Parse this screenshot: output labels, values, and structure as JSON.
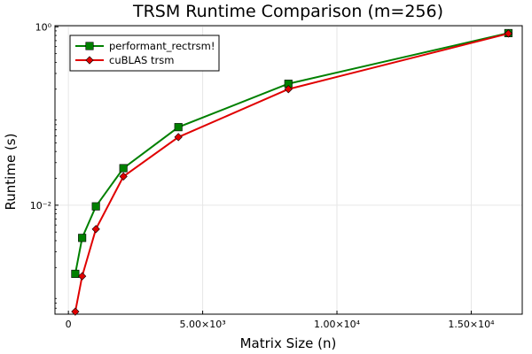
{
  "chart_data": {
    "type": "line",
    "title": "TRSM Runtime Comparison (m=256)",
    "xlabel": "Matrix Size (n)",
    "ylabel": "Runtime (s)",
    "x_scale": "linear",
    "y_scale": "log10",
    "xlim": [
      -500,
      16900
    ],
    "ylim": [
      0.0006,
      1.03
    ],
    "grid": true,
    "legend_position": "top-left",
    "x_ticks": [
      {
        "value": 0,
        "label": "0"
      },
      {
        "value": 5000,
        "label": "5.00×10³"
      },
      {
        "value": 10000,
        "label": "1.00×10⁴"
      },
      {
        "value": 15000,
        "label": "1.50×10⁴"
      }
    ],
    "y_ticks": [
      {
        "value": 0.01,
        "label": "10⁻²"
      },
      {
        "value": 1,
        "label": "10⁰"
      }
    ],
    "series": [
      {
        "name": "performant_rectrsm!",
        "color": "#008000",
        "marker": "square",
        "x": [
          256,
          512,
          1024,
          2048,
          4096,
          8192,
          16384
        ],
        "y": [
          0.0017,
          0.0043,
          0.0097,
          0.026,
          0.075,
          0.23,
          0.85
        ]
      },
      {
        "name": "cuBLAS trsm",
        "color": "#e00000",
        "marker": "diamond",
        "x": [
          256,
          512,
          1024,
          2048,
          4096,
          8192,
          16384
        ],
        "y": [
          0.00064,
          0.0016,
          0.0054,
          0.021,
          0.058,
          0.2,
          0.84
        ]
      }
    ]
  }
}
